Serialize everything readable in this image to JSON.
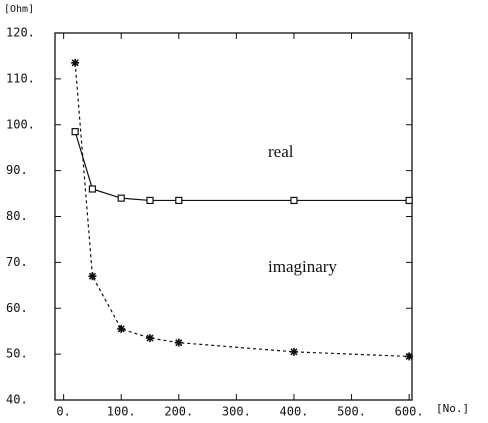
{
  "chart_data": {
    "type": "line",
    "ylabel": "[Ohm]",
    "xlabel": "[No.]",
    "xlim": [
      -15,
      605
    ],
    "ylim": [
      40,
      120
    ],
    "xticks": [
      {
        "value": 0,
        "label": "0."
      },
      {
        "value": 100,
        "label": "100."
      },
      {
        "value": 200,
        "label": "200."
      },
      {
        "value": 300,
        "label": "300."
      },
      {
        "value": 400,
        "label": "400."
      },
      {
        "value": 500,
        "label": "500."
      },
      {
        "value": 600,
        "label": "600."
      }
    ],
    "yticks": [
      {
        "value": 40,
        "label": "40."
      },
      {
        "value": 50,
        "label": "50."
      },
      {
        "value": 60,
        "label": "60."
      },
      {
        "value": 70,
        "label": "70."
      },
      {
        "value": 80,
        "label": "80."
      },
      {
        "value": 90,
        "label": "90."
      },
      {
        "value": 100,
        "label": "100."
      },
      {
        "value": 110,
        "label": "110."
      },
      {
        "value": 120,
        "label": "120."
      }
    ],
    "series": [
      {
        "name": "real",
        "color": "#111111",
        "marker": "square",
        "x": [
          20,
          50,
          100,
          150,
          200,
          400,
          600
        ],
        "values": [
          98.5,
          86,
          84,
          83.5,
          83.5,
          83.5,
          83.5
        ]
      },
      {
        "name": "imaginary",
        "color": "#111111",
        "marker": "star",
        "x": [
          20,
          50,
          100,
          150,
          200,
          400,
          600
        ],
        "values": [
          113.5,
          67,
          55.5,
          53.5,
          52.5,
          50.5,
          49.5
        ]
      }
    ]
  }
}
